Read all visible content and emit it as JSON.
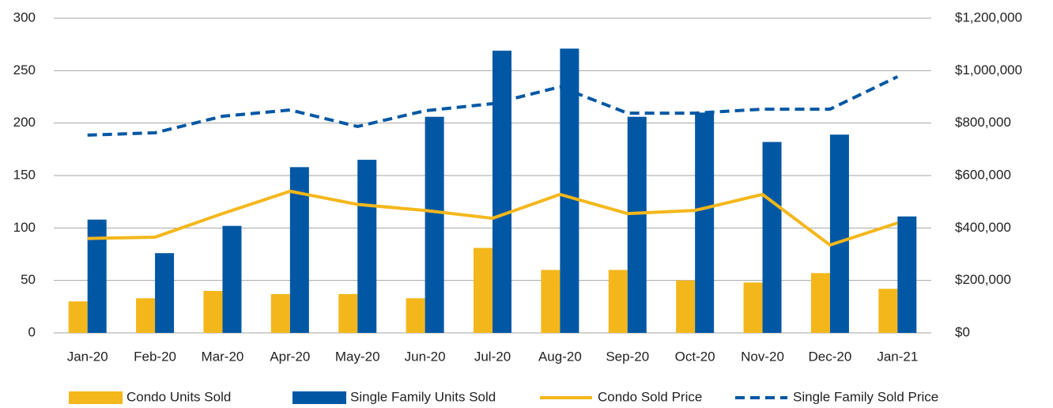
{
  "chart_data": {
    "type": "bar-line",
    "categories": [
      "Jan-20",
      "Feb-20",
      "Mar-20",
      "Apr-20",
      "May-20",
      "Jun-20",
      "Jul-20",
      "Aug-20",
      "Sep-20",
      "Oct-20",
      "Nov-20",
      "Dec-20",
      "Jan-21"
    ],
    "series": [
      {
        "name": "Condo Units Sold",
        "type": "bar",
        "color": "#f4b71b",
        "values": [
          30,
          33,
          40,
          37,
          37,
          33,
          81,
          60,
          60,
          50,
          48,
          57,
          42
        ]
      },
      {
        "name": "Single Family Units Sold",
        "type": "bar",
        "color": "#0057a4",
        "values": [
          108,
          76,
          102,
          158,
          165,
          206,
          269,
          271,
          206,
          210,
          182,
          189,
          111
        ]
      },
      {
        "name": "Condo Sold Price",
        "type": "line",
        "axis": "y2",
        "color": "#f4b71b",
        "dashed": false,
        "values": [
          360000,
          365000,
          455000,
          540000,
          490000,
          467000,
          437000,
          528000,
          455000,
          467000,
          528000,
          335000,
          419000
        ]
      },
      {
        "name": "Single Family Sold Price",
        "type": "line",
        "axis": "y2",
        "color": "#0057a4",
        "dashed": true,
        "values": [
          754000,
          763000,
          826000,
          850000,
          787000,
          847000,
          874000,
          938000,
          838000,
          838000,
          853000,
          853000,
          977000
        ]
      }
    ],
    "ylim": [
      0,
      300
    ],
    "yticks": [
      0,
      50,
      100,
      150,
      200,
      250,
      300
    ],
    "y2lim": [
      0,
      1200000
    ],
    "y2ticks": [
      {
        "value": 0,
        "label": "$0"
      },
      {
        "value": 200000,
        "label": "$200,000"
      },
      {
        "value": 400000,
        "label": "$400,000"
      },
      {
        "value": 600000,
        "label": "$600,000"
      },
      {
        "value": 800000,
        "label": "$800,000"
      },
      {
        "value": 1000000,
        "label": "$1,000,000"
      },
      {
        "value": 1200000,
        "label": "$1,200,000"
      }
    ],
    "grid": true,
    "legend": "bottom"
  }
}
